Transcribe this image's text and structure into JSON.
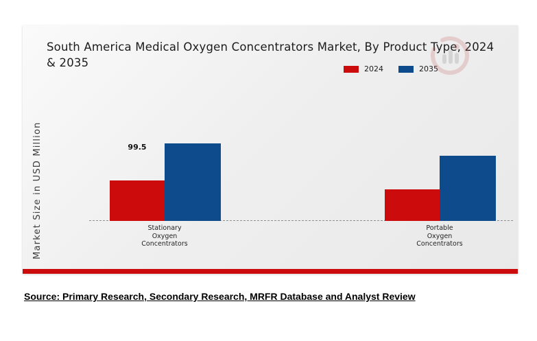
{
  "figure": {
    "title_lines": [
      "South America Medical Oxygen Concentrators Market, By Product Type, 2024",
      "& 2035"
    ],
    "source_text": "Source: Primary Research, Secondary Research, MRFR Database and Analyst Review",
    "watermark_icon": "mrfr-circular-logo"
  },
  "colors": {
    "red_2024": "#cc0b0d",
    "blue_2035": "#0d4b8c",
    "accent_stripe": "#cc0b0d",
    "panel_background": "#ececec",
    "baseline_dash": "#8f8f8f"
  },
  "chart_data": {
    "type": "bar",
    "title": "South America Medical Oxygen Concentrators Market, By Product Type, 2024 & 2035",
    "xlabel": "",
    "ylabel": "Market Size in USD Million",
    "categories": [
      "Stationary Oxygen Concentrators",
      "Portable Oxygen Concentrators"
    ],
    "series": [
      {
        "name": "2024",
        "color": "#cc0b0d",
        "values": [
          99.5,
          78
        ],
        "point_labels": [
          "99.5",
          ""
        ]
      },
      {
        "name": "2035",
        "color": "#0d4b8c",
        "values": [
          190,
          160
        ],
        "point_labels": [
          "",
          ""
        ]
      }
    ],
    "labeled_values": [
      "99.5"
    ],
    "legend_position": "top-right",
    "grid": false,
    "baseline_style": "dashed",
    "y_axis_ticks_visible": false
  }
}
